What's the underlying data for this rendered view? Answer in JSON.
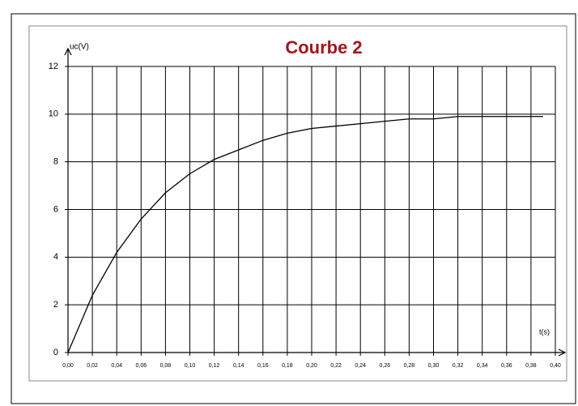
{
  "chart_data": {
    "type": "line",
    "title": "Courbe 2",
    "y_label": "uc(V)",
    "x_label": "t(s)",
    "x": [
      0,
      0.02,
      0.04,
      0.06,
      0.08,
      0.1,
      0.12,
      0.14,
      0.16,
      0.18,
      0.2,
      0.22,
      0.24,
      0.26,
      0.28,
      0.3,
      0.32,
      0.34,
      0.36,
      0.38,
      0.39
    ],
    "values": [
      0,
      2.4,
      4.2,
      5.6,
      6.7,
      7.5,
      8.1,
      8.5,
      8.9,
      9.2,
      9.4,
      9.5,
      9.6,
      9.7,
      9.8,
      9.8,
      9.9,
      9.9,
      9.9,
      9.9,
      9.9
    ],
    "color": "#000000",
    "xlim": [
      0,
      0.4
    ],
    "ylim": [
      0,
      12
    ],
    "xticks": [
      {
        "value": 0,
        "label": "0,00"
      },
      {
        "value": 0.02,
        "label": "0,02"
      },
      {
        "value": 0.04,
        "label": "0,04"
      },
      {
        "value": 0.06,
        "label": "0,06"
      },
      {
        "value": 0.08,
        "label": "0,08"
      },
      {
        "value": 0.1,
        "label": "0,10"
      },
      {
        "value": 0.12,
        "label": "0,12"
      },
      {
        "value": 0.14,
        "label": "0,14"
      },
      {
        "value": 0.16,
        "label": "0,16"
      },
      {
        "value": 0.18,
        "label": "0,18"
      },
      {
        "value": 0.2,
        "label": "0,20"
      },
      {
        "value": 0.22,
        "label": "0,22"
      },
      {
        "value": 0.24,
        "label": "0,24"
      },
      {
        "value": 0.26,
        "label": "0,26"
      },
      {
        "value": 0.28,
        "label": "0,28"
      },
      {
        "value": 0.3,
        "label": "0,30"
      },
      {
        "value": 0.32,
        "label": "0,32"
      },
      {
        "value": 0.34,
        "label": "0,34"
      },
      {
        "value": 0.36,
        "label": "0,36"
      },
      {
        "value": 0.38,
        "label": "0,38"
      },
      {
        "value": 0.4,
        "label": "0,40"
      }
    ],
    "yticks": [
      0,
      2,
      4,
      6,
      8,
      10,
      12
    ],
    "grid": true
  }
}
